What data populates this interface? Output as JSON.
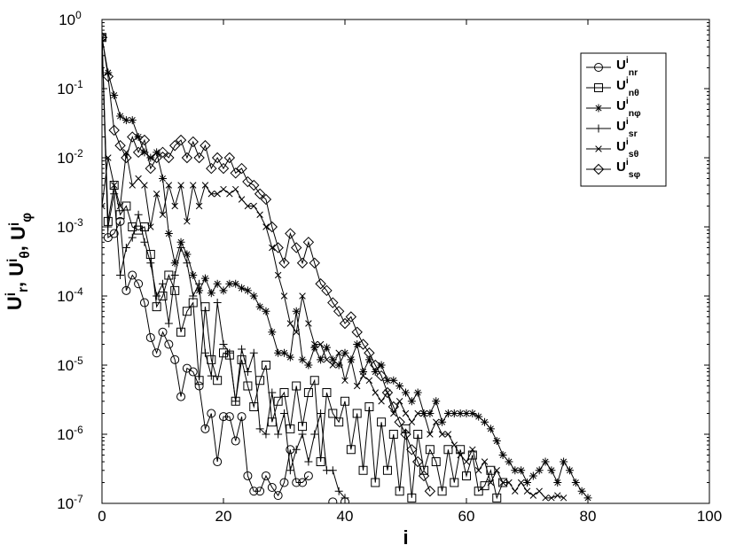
{
  "chart_data": {
    "type": "line",
    "ylabel": "U^i_r, U^i_θ, U^i_φ",
    "xlabel": "i",
    "xlim": [
      0,
      100
    ],
    "xticks": [
      0,
      20,
      40,
      60,
      80,
      100
    ],
    "ylim": [
      1e-07,
      1
    ],
    "ylog": true,
    "yticks": [
      {
        "value": 1e-07,
        "label": "10^-7"
      },
      {
        "value": 1e-06,
        "label": "10^-6"
      },
      {
        "value": 1e-05,
        "label": "10^-5"
      },
      {
        "value": 0.0001,
        "label": "10^-4"
      },
      {
        "value": 0.001,
        "label": "10^-3"
      },
      {
        "value": 0.01,
        "label": "10^-2"
      },
      {
        "value": 0.1,
        "label": "10^-1"
      },
      {
        "value": 1,
        "label": "10^0"
      }
    ],
    "legend": "upper right",
    "grid": false,
    "x": [
      0,
      1,
      2,
      3,
      4,
      5,
      6,
      7,
      8,
      9,
      10,
      11,
      12,
      13,
      14,
      15,
      16,
      17,
      18,
      19,
      20,
      21,
      22,
      23,
      24,
      25,
      26,
      27,
      28,
      29,
      30,
      31,
      32,
      33,
      34,
      35,
      36,
      37,
      38,
      39,
      40,
      41,
      42,
      43,
      44,
      45,
      46,
      47,
      48,
      49,
      50,
      51,
      52,
      53,
      54,
      55,
      56,
      57,
      58,
      59,
      60,
      61,
      62,
      63,
      64,
      65,
      66,
      67,
      68,
      69,
      70,
      71,
      72,
      73,
      74,
      75,
      76,
      77,
      78,
      79,
      80
    ],
    "series": [
      {
        "name": "U^i_nr",
        "color": "#000000",
        "marker": "circle",
        "values": [
          0.55,
          0.0007,
          0.0008,
          0.0012,
          0.00012,
          0.0002,
          0.00015,
          8e-05,
          2.5e-05,
          1.5e-05,
          3e-05,
          2e-05,
          1.2e-05,
          3.5e-06,
          9e-06,
          8e-06,
          5e-06,
          1.2e-06,
          2e-06,
          4e-07,
          1.8e-06,
          1.8e-06,
          8e-07,
          1.8e-06,
          2.5e-07,
          1.5e-07,
          1.5e-07,
          2.5e-07,
          1.7e-07,
          1.3e-07,
          2e-07,
          6e-07,
          2e-07,
          2e-07,
          2.5e-07,
          null,
          null,
          null,
          1.05e-07,
          null,
          1.05e-07,
          null,
          null,
          null,
          null,
          null,
          null,
          null,
          null,
          null,
          null,
          null,
          null,
          null,
          null,
          null,
          null,
          null,
          null,
          null,
          null,
          null,
          null,
          null,
          null,
          null,
          null,
          null,
          null,
          null,
          null,
          null,
          null,
          null,
          null,
          null,
          null,
          null,
          null,
          null,
          null
        ]
      },
      {
        "name": "U^i_nθ",
        "color": "#000000",
        "marker": "square",
        "values": [
          0.55,
          0.0012,
          0.004,
          0.0015,
          0.002,
          0.001,
          0.0009,
          0.001,
          0.0004,
          7e-05,
          0.0001,
          0.0002,
          0.00012,
          3e-05,
          6e-05,
          8e-05,
          6e-06,
          7e-05,
          1.2e-05,
          6e-06,
          1.5e-05,
          1.4e-05,
          3e-06,
          1.2e-05,
          5e-06,
          2.5e-06,
          6e-06,
          1e-05,
          1.5e-06,
          3e-06,
          4e-06,
          1.2e-06,
          5e-06,
          1.3e-06,
          4e-06,
          6e-06,
          4e-07,
          4e-06,
          2e-06,
          1.5e-06,
          3e-06,
          6e-07,
          2e-06,
          3e-07,
          2.5e-06,
          2e-07,
          1.5e-06,
          3e-07,
          1e-06,
          1.5e-07,
          1.2e-06,
          1.2e-07,
          1e-06,
          3e-07,
          6e-07,
          4e-07,
          1.5e-07,
          6e-07,
          2e-07,
          6e-07,
          2.5e-07,
          5e-07,
          1.5e-07,
          1.8e-07,
          3e-07,
          1.2e-07,
          2e-07,
          null,
          null,
          null,
          null,
          null,
          null,
          null,
          null,
          null,
          null,
          null,
          null,
          null,
          null
        ]
      },
      {
        "name": "U^i_nφ",
        "color": "#000000",
        "marker": "star",
        "values": [
          0.55,
          0.17,
          0.08,
          0.04,
          0.035,
          0.035,
          0.02,
          0.012,
          0.01,
          0.012,
          0.005,
          0.0008,
          0.0003,
          0.0006,
          0.0004,
          0.0002,
          0.00012,
          0.00018,
          0.00011,
          0.00015,
          0.00012,
          0.00015,
          0.00015,
          0.00013,
          0.00012,
          0.0001,
          7e-05,
          6e-05,
          3e-05,
          1.5e-05,
          1.5e-05,
          1.3e-05,
          6e-05,
          1.2e-05,
          1e-05,
          1.8e-05,
          1.2e-05,
          1.8e-05,
          1.2e-05,
          1e-05,
          1.5e-05,
          1.2e-05,
          2e-05,
          8e-06,
          1.2e-05,
          8e-06,
          1e-05,
          6e-06,
          6e-06,
          5e-06,
          4e-06,
          3e-06,
          4e-06,
          2e-06,
          2e-06,
          3e-06,
          1.5e-06,
          2e-06,
          2e-06,
          2e-06,
          2e-06,
          2e-06,
          1.8e-06,
          1.5e-06,
          1.2e-06,
          8e-07,
          5e-07,
          4e-07,
          3e-07,
          3e-07,
          2e-07,
          2.5e-07,
          3e-07,
          4e-07,
          3e-07,
          2e-07,
          4e-07,
          3e-07,
          2e-07,
          1.5e-07,
          1.2e-07
        ]
      },
      {
        "name": "U^i_sr",
        "color": "#000000",
        "marker": "plus",
        "values": [
          0.55,
          0.001,
          0.003,
          0.0002,
          0.0005,
          0.0007,
          0.0015,
          0.0006,
          0.0003,
          0.0001,
          0.00015,
          4e-05,
          0.0002,
          0.0005,
          0.0003,
          0.0001,
          0.00015,
          1.5e-05,
          7e-06,
          8e-05,
          2e-05,
          1.5e-05,
          3e-06,
          1.7e-05,
          8e-06,
          1.5e-05,
          1.2e-06,
          1e-06,
          4e-06,
          1e-06,
          2e-06,
          3e-07,
          6e-07,
          1e-06,
          4e-07,
          1e-06,
          2e-06,
          3e-07,
          3e-07,
          1.5e-07,
          1.2e-07,
          null,
          null,
          null,
          null,
          null,
          null,
          null,
          null,
          null,
          null,
          null,
          null,
          null,
          null,
          null,
          null,
          null,
          null,
          null,
          null,
          null,
          null,
          null,
          null,
          null,
          null,
          null,
          null,
          null,
          null,
          null,
          null,
          null,
          null,
          null,
          null,
          null,
          null,
          null,
          null
        ]
      },
      {
        "name": "U^i_sθ",
        "color": "#000000",
        "marker": "cross",
        "values": [
          0.002,
          0.01,
          0.004,
          0.002,
          0.012,
          0.004,
          0.005,
          0.004,
          0.001,
          0.003,
          0.0015,
          0.004,
          0.002,
          0.004,
          0.0012,
          0.004,
          0.002,
          0.004,
          0.003,
          0.003,
          0.0035,
          0.003,
          0.0035,
          0.0025,
          0.002,
          0.002,
          0.0015,
          0.001,
          0.0005,
          0.0002,
          0.0001,
          4e-05,
          3e-05,
          0.0001,
          4e-05,
          2e-05,
          2e-05,
          1.2e-05,
          1e-05,
          1.5e-05,
          6e-06,
          1.2e-05,
          5e-06,
          7e-06,
          6e-06,
          4e-06,
          3e-06,
          4e-06,
          2e-06,
          3e-06,
          2e-06,
          1.5e-06,
          2e-06,
          2e-06,
          1e-06,
          1.5e-06,
          1e-06,
          1e-06,
          7e-07,
          5e-07,
          4e-07,
          6e-07,
          3e-07,
          4e-07,
          2e-07,
          3e-07,
          2e-07,
          2e-07,
          1.5e-07,
          2e-07,
          1.5e-07,
          1.3e-07,
          1.5e-07,
          1.2e-07,
          1.2e-07,
          1.3e-07,
          1.2e-07,
          null,
          null,
          null,
          null
        ]
      },
      {
        "name": "U^i_sφ",
        "color": "#000000",
        "marker": "diamond",
        "values": [
          0.55,
          0.15,
          0.025,
          0.015,
          0.01,
          0.02,
          0.012,
          0.018,
          0.007,
          0.01,
          0.012,
          0.01,
          0.015,
          0.018,
          0.01,
          0.017,
          0.01,
          0.015,
          0.007,
          0.01,
          0.007,
          0.01,
          0.006,
          0.007,
          0.0045,
          0.004,
          0.003,
          0.0025,
          0.001,
          0.0005,
          0.0003,
          0.0008,
          0.0005,
          0.0003,
          0.0006,
          0.0003,
          0.00015,
          0.00012,
          8e-05,
          6e-05,
          4e-05,
          5e-05,
          3e-05,
          2e-05,
          1.5e-05,
          1e-05,
          7e-06,
          4e-06,
          2.5e-06,
          1.5e-06,
          1e-06,
          6e-07,
          4e-07,
          2.5e-07,
          1.5e-07,
          null,
          null,
          null,
          null,
          null,
          null,
          null,
          null,
          null,
          null,
          null,
          null,
          null,
          null,
          null,
          null,
          null,
          null,
          null,
          null,
          null,
          null,
          null,
          null,
          null,
          null
        ]
      }
    ]
  }
}
